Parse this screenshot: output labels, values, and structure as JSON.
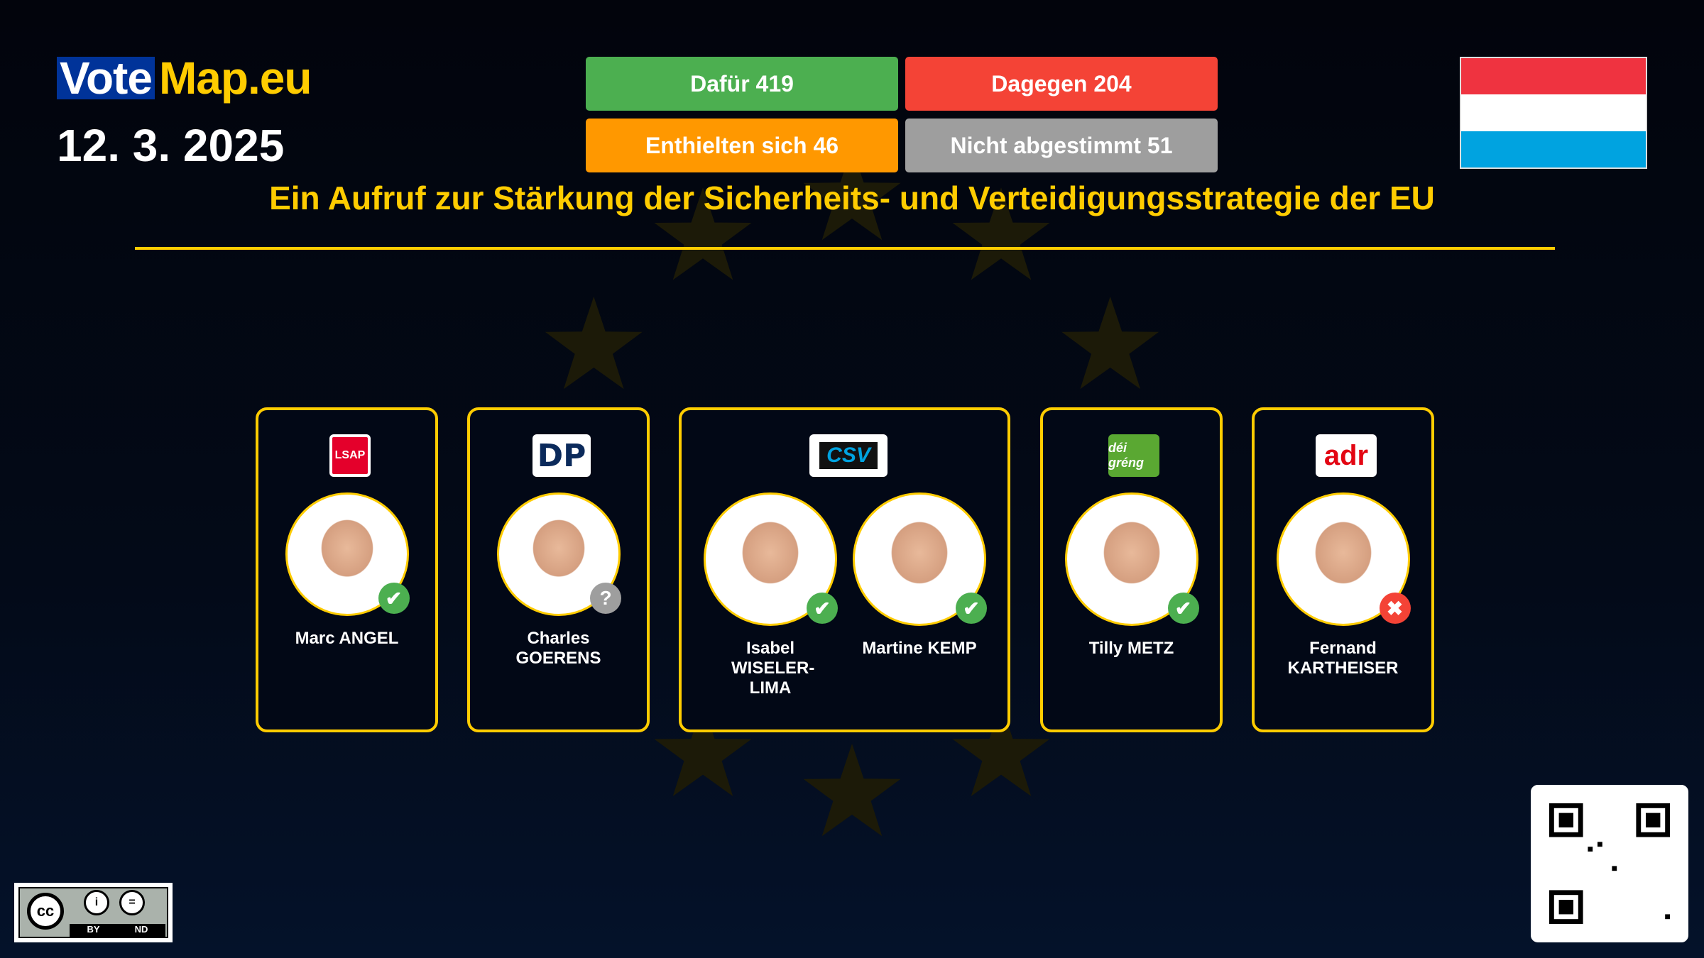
{
  "brand": {
    "vote": "Vote",
    "map": "Map.eu"
  },
  "date": "12. 3. 2025",
  "results": {
    "for": {
      "label": "Dafür 419",
      "color": "#4caf50"
    },
    "against": {
      "label": "Dagegen 204",
      "color": "#f44336"
    },
    "abstain": {
      "label": "Enthielten sich 46",
      "color": "#ff9800"
    },
    "absent": {
      "label": "Nicht abgestimmt 51",
      "color": "#9e9e9e"
    }
  },
  "flag": {
    "country_colors": [
      "#ef3340",
      "#ffffff",
      "#00a3e0"
    ]
  },
  "title": "Ein Aufruf zur Stärkung der Sicherheits- und Verteidigungsstrategie der EU",
  "groups": [
    {
      "party": "LSAP",
      "members": [
        {
          "name": "Marc ANGEL",
          "vote": "for"
        }
      ]
    },
    {
      "party": "DP",
      "members": [
        {
          "name": "Charles GOERENS",
          "vote": "absent"
        }
      ]
    },
    {
      "party": "CSV",
      "members": [
        {
          "name": "Isabel WISELER-LIMA",
          "vote": "for"
        },
        {
          "name": "Martine KEMP",
          "vote": "for"
        }
      ]
    },
    {
      "party": "déi gréng",
      "members": [
        {
          "name": "Tilly METZ",
          "vote": "for"
        }
      ]
    },
    {
      "party": "adr",
      "members": [
        {
          "name": "Fernand KARTHEISER",
          "vote": "against"
        }
      ]
    }
  ],
  "license": {
    "cc": "cc",
    "by": "BY",
    "nd": "ND"
  }
}
